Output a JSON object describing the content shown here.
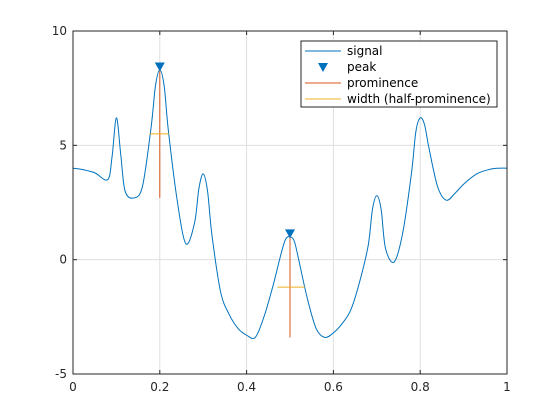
{
  "chart_data": {
    "type": "line",
    "title": "",
    "xlabel": "",
    "ylabel": "",
    "xlim": [
      0,
      1
    ],
    "ylim": [
      -5,
      10
    ],
    "grid": true,
    "legend_position": "top-right",
    "x_ticks": [
      "0",
      "0.2",
      "0.4",
      "0.6",
      "0.8",
      "1"
    ],
    "y_ticks": [
      "10",
      "5",
      "0",
      "-5"
    ],
    "series": [
      {
        "name": "signal",
        "kind": "line",
        "color": "#0072BD",
        "x": [
          0.0,
          0.02,
          0.05,
          0.08,
          0.09,
          0.1,
          0.11,
          0.12,
          0.14,
          0.16,
          0.18,
          0.19,
          0.2,
          0.21,
          0.22,
          0.24,
          0.26,
          0.28,
          0.29,
          0.3,
          0.31,
          0.32,
          0.34,
          0.36,
          0.38,
          0.4,
          0.42,
          0.44,
          0.46,
          0.48,
          0.49,
          0.5,
          0.51,
          0.52,
          0.54,
          0.56,
          0.58,
          0.6,
          0.62,
          0.64,
          0.66,
          0.68,
          0.69,
          0.7,
          0.71,
          0.72,
          0.74,
          0.76,
          0.78,
          0.79,
          0.8,
          0.81,
          0.82,
          0.84,
          0.86,
          0.88,
          0.9,
          0.93,
          0.96,
          0.98,
          1.0
        ],
        "y": [
          4.0,
          3.95,
          3.8,
          3.5,
          4.5,
          6.2,
          4.6,
          3.0,
          2.7,
          3.2,
          5.8,
          7.6,
          8.3,
          7.6,
          5.6,
          2.6,
          0.7,
          1.6,
          3.1,
          3.75,
          3.0,
          1.1,
          -1.4,
          -2.4,
          -3.0,
          -3.3,
          -3.4,
          -2.5,
          -1.2,
          0.3,
          0.9,
          1.0,
          0.8,
          0.0,
          -1.7,
          -3.0,
          -3.4,
          -3.2,
          -2.8,
          -2.2,
          -1.0,
          0.6,
          2.2,
          2.8,
          2.2,
          0.5,
          -0.1,
          1.2,
          3.8,
          5.6,
          6.2,
          5.9,
          4.9,
          3.2,
          2.6,
          2.9,
          3.3,
          3.75,
          3.95,
          4.0,
          4.0
        ]
      },
      {
        "name": "peak",
        "kind": "marker",
        "color": "#0072BD",
        "x": [
          0.2,
          0.5
        ],
        "y": [
          8.45,
          1.15
        ]
      },
      {
        "name": "prominence",
        "kind": "vline",
        "color": "#D95319",
        "segments": [
          {
            "x": 0.2,
            "y0": 2.7,
            "y1": 8.3
          },
          {
            "x": 0.5,
            "y0": -3.4,
            "y1": 1.0
          }
        ]
      },
      {
        "name": "width (half-prominence)",
        "kind": "hline",
        "color": "#EDB120",
        "segments": [
          {
            "y": 5.5,
            "x0": 0.176,
            "x1": 0.221
          },
          {
            "y": -1.2,
            "x0": 0.471,
            "x1": 0.534
          }
        ]
      }
    ]
  }
}
